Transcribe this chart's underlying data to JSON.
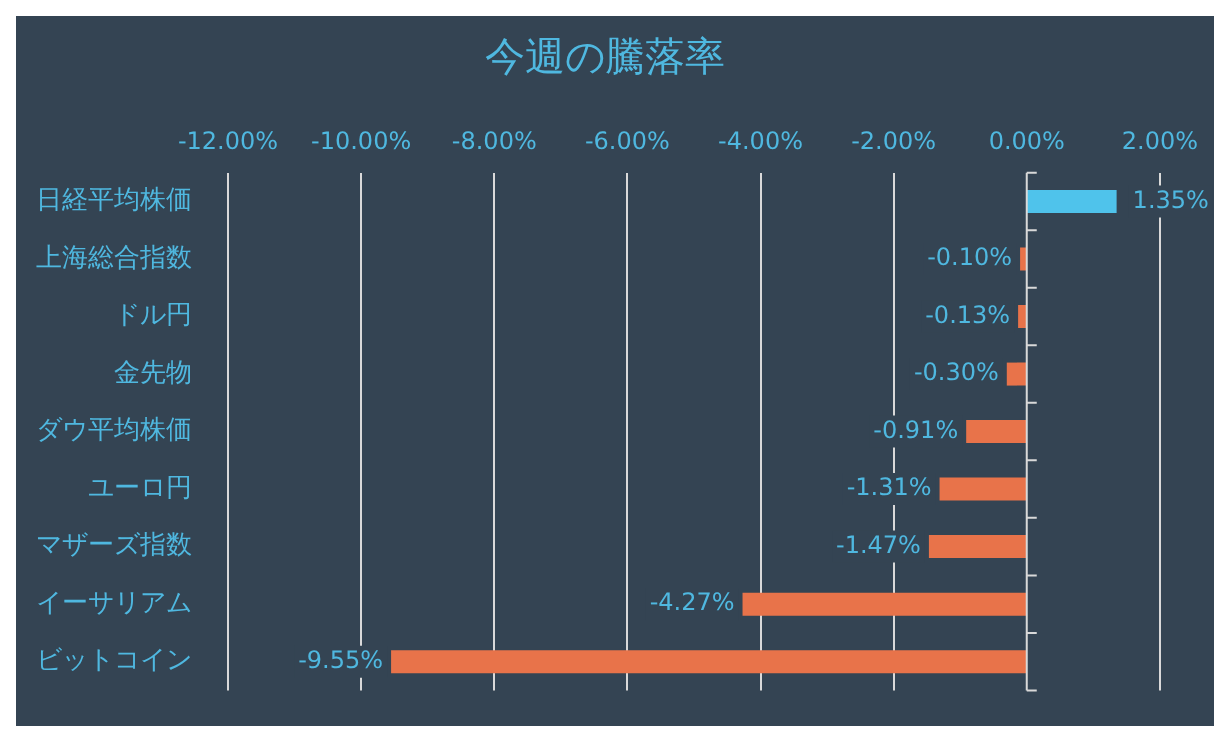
{
  "chart_data": {
    "type": "bar",
    "orientation": "horizontal",
    "title": "今週の騰落率",
    "categories": [
      "日経平均株価",
      "上海総合指数",
      "ドル円",
      "金先物",
      "ダウ平均株価",
      "ユーロ円",
      "マザーズ指数",
      "イーサリアム",
      "ビットコイン"
    ],
    "values": [
      1.35,
      -0.1,
      -0.13,
      -0.3,
      -0.91,
      -1.31,
      -1.47,
      -4.27,
      -9.55
    ],
    "colors": [
      "#4fc3eb",
      "#e8734a",
      "#e8734a",
      "#e8734a",
      "#e8734a",
      "#e8734a",
      "#e8734a",
      "#e8734a",
      "#e8734a"
    ],
    "value_labels": [
      "1.35%",
      "-0.10%",
      "-0.13%",
      "-0.30%",
      "-0.91%",
      "-1.31%",
      "-1.47%",
      "-4.27%",
      "-9.55%"
    ],
    "xlim": [
      -12,
      2
    ],
    "xticks": [
      {
        "value": -12,
        "label": "-12.00%"
      },
      {
        "value": -10,
        "label": "-10.00%"
      },
      {
        "value": -8,
        "label": "-8.00%"
      },
      {
        "value": -6,
        "label": "-6.00%"
      },
      {
        "value": -4,
        "label": "-4.00%"
      },
      {
        "value": -2,
        "label": "-2.00%"
      },
      {
        "value": 0,
        "label": "0.00%"
      },
      {
        "value": 2,
        "label": "2.00%"
      }
    ],
    "grid": "x",
    "legend": false
  }
}
